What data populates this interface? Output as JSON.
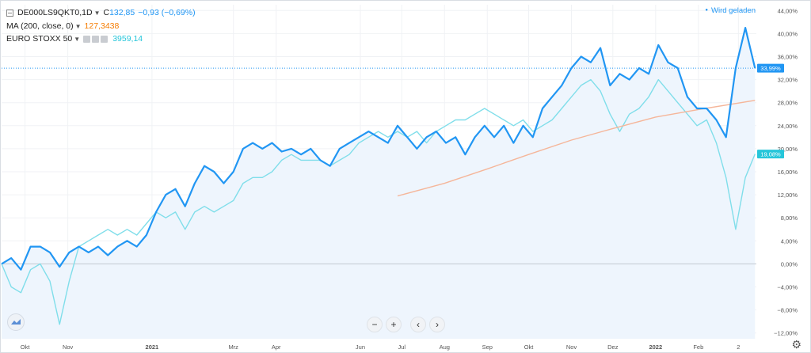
{
  "legend": {
    "symbol": "DE000LS9QKT0",
    "interval": "1D",
    "close_label": "C",
    "close_value": "132,85",
    "change": "−0,93 (−0,69%)",
    "ma_label": "MA (200, close, 0)",
    "ma_value": "127,3438",
    "compare_label": "EURO STOXX 50",
    "compare_value": "3959,14"
  },
  "status": "Wird geladen",
  "controls": {
    "zoom_out": "−",
    "zoom_in": "+",
    "scroll_left": "‹",
    "scroll_right": "›"
  },
  "colors": {
    "price": "#2196f3",
    "compare": "#80deea",
    "ma": "#f5b69a",
    "area": "#eef5fd",
    "price_badge": "#2196f3",
    "compare_badge": "#26c6da"
  },
  "chart_data": {
    "type": "line",
    "y_unit": "percent",
    "ylim": [
      -13,
      45
    ],
    "y_ticks": [
      "44,00%",
      "40,00%",
      "36,00%",
      "32,00%",
      "28,00%",
      "24,00%",
      "20,00%",
      "16,00%",
      "12,00%",
      "8,00%",
      "4,00%",
      "0,00%",
      "−4,00%",
      "−8,00%",
      "−12,00%"
    ],
    "y_tick_values": [
      44,
      40,
      36,
      32,
      28,
      24,
      20,
      16,
      12,
      8,
      4,
      0,
      -4,
      -8,
      -12
    ],
    "x_ticks": [
      "Okt",
      "Nov",
      "2021",
      "Mrz",
      "Apr",
      "Jun",
      "Jul",
      "Aug",
      "Sep",
      "Okt",
      "Nov",
      "Dez",
      "2022",
      "Feb",
      "2"
    ],
    "x_tick_dates": [
      "2020-10-01",
      "2020-11-01",
      "2021-01-01",
      "2021-03-01",
      "2021-04-01",
      "2021-06-01",
      "2021-07-01",
      "2021-08-01",
      "2021-09-01",
      "2021-10-01",
      "2021-11-01",
      "2021-12-01",
      "2022-01-01",
      "2022-02-01",
      "2022-03-02"
    ],
    "x_range": [
      "2020-09-14",
      "2022-03-15"
    ],
    "last_values": {
      "price": "33,99%",
      "compare": "19,08%"
    },
    "series": [
      {
        "name": "DE000LS9QKT0",
        "points": [
          [
            "2020-09-14",
            0
          ],
          [
            "2020-09-21",
            1
          ],
          [
            "2020-09-28",
            -1
          ],
          [
            "2020-10-05",
            3
          ],
          [
            "2020-10-12",
            3
          ],
          [
            "2020-10-19",
            2
          ],
          [
            "2020-10-26",
            -0.5
          ],
          [
            "2020-11-02",
            2
          ],
          [
            "2020-11-09",
            3
          ],
          [
            "2020-11-16",
            2
          ],
          [
            "2020-11-23",
            3
          ],
          [
            "2020-11-30",
            1.5
          ],
          [
            "2020-12-07",
            3
          ],
          [
            "2020-12-14",
            4
          ],
          [
            "2020-12-21",
            3
          ],
          [
            "2020-12-28",
            5
          ],
          [
            "2021-01-04",
            9
          ],
          [
            "2021-01-11",
            12
          ],
          [
            "2021-01-18",
            13
          ],
          [
            "2021-01-25",
            10
          ],
          [
            "2021-02-01",
            14
          ],
          [
            "2021-02-08",
            17
          ],
          [
            "2021-02-15",
            16
          ],
          [
            "2021-02-22",
            14
          ],
          [
            "2021-03-01",
            16
          ],
          [
            "2021-03-08",
            20
          ],
          [
            "2021-03-15",
            21
          ],
          [
            "2021-03-22",
            20
          ],
          [
            "2021-03-29",
            21
          ],
          [
            "2021-04-05",
            19.5
          ],
          [
            "2021-04-12",
            20
          ],
          [
            "2021-04-19",
            19
          ],
          [
            "2021-04-26",
            20
          ],
          [
            "2021-05-03",
            18
          ],
          [
            "2021-05-10",
            17
          ],
          [
            "2021-05-17",
            20
          ],
          [
            "2021-05-24",
            21
          ],
          [
            "2021-05-31",
            22
          ],
          [
            "2021-06-07",
            23
          ],
          [
            "2021-06-14",
            22
          ],
          [
            "2021-06-21",
            21
          ],
          [
            "2021-06-28",
            24
          ],
          [
            "2021-07-05",
            22
          ],
          [
            "2021-07-12",
            20
          ],
          [
            "2021-07-19",
            22
          ],
          [
            "2021-07-26",
            23
          ],
          [
            "2021-08-02",
            21
          ],
          [
            "2021-08-09",
            22
          ],
          [
            "2021-08-16",
            19
          ],
          [
            "2021-08-23",
            22
          ],
          [
            "2021-08-30",
            24
          ],
          [
            "2021-09-06",
            22
          ],
          [
            "2021-09-13",
            24
          ],
          [
            "2021-09-20",
            21
          ],
          [
            "2021-09-27",
            24
          ],
          [
            "2021-10-04",
            22
          ],
          [
            "2021-10-11",
            27
          ],
          [
            "2021-10-18",
            29
          ],
          [
            "2021-10-25",
            31
          ],
          [
            "2021-11-01",
            34
          ],
          [
            "2021-11-08",
            36
          ],
          [
            "2021-11-15",
            35
          ],
          [
            "2021-11-22",
            37.5
          ],
          [
            "2021-11-29",
            31
          ],
          [
            "2021-12-06",
            33
          ],
          [
            "2021-12-13",
            32
          ],
          [
            "2021-12-20",
            34
          ],
          [
            "2021-12-27",
            33
          ],
          [
            "2022-01-03",
            38
          ],
          [
            "2022-01-10",
            35
          ],
          [
            "2022-01-17",
            34
          ],
          [
            "2022-01-24",
            29
          ],
          [
            "2022-01-31",
            27
          ],
          [
            "2022-02-07",
            27
          ],
          [
            "2022-02-14",
            25
          ],
          [
            "2022-02-21",
            22
          ],
          [
            "2022-02-28",
            34
          ],
          [
            "2022-03-07",
            41
          ],
          [
            "2022-03-14",
            33.99
          ]
        ]
      },
      {
        "name": "EURO STOXX 50",
        "points": [
          [
            "2020-09-14",
            0
          ],
          [
            "2020-09-21",
            -4
          ],
          [
            "2020-09-28",
            -5
          ],
          [
            "2020-10-05",
            -1
          ],
          [
            "2020-10-12",
            0
          ],
          [
            "2020-10-19",
            -3
          ],
          [
            "2020-10-26",
            -10.5
          ],
          [
            "2020-11-02",
            -3
          ],
          [
            "2020-11-09",
            3
          ],
          [
            "2020-11-16",
            4
          ],
          [
            "2020-11-23",
            5
          ],
          [
            "2020-11-30",
            6
          ],
          [
            "2020-12-07",
            5
          ],
          [
            "2020-12-14",
            6
          ],
          [
            "2020-12-21",
            5
          ],
          [
            "2020-12-28",
            7
          ],
          [
            "2021-01-04",
            9
          ],
          [
            "2021-01-11",
            8
          ],
          [
            "2021-01-18",
            9
          ],
          [
            "2021-01-25",
            6
          ],
          [
            "2021-02-01",
            9
          ],
          [
            "2021-02-08",
            10
          ],
          [
            "2021-02-15",
            9
          ],
          [
            "2021-02-22",
            10
          ],
          [
            "2021-03-01",
            11
          ],
          [
            "2021-03-08",
            14
          ],
          [
            "2021-03-15",
            15
          ],
          [
            "2021-03-22",
            15
          ],
          [
            "2021-03-29",
            16
          ],
          [
            "2021-04-05",
            18
          ],
          [
            "2021-04-12",
            19
          ],
          [
            "2021-04-19",
            18
          ],
          [
            "2021-04-26",
            18
          ],
          [
            "2021-05-03",
            18
          ],
          [
            "2021-05-10",
            17
          ],
          [
            "2021-05-17",
            18
          ],
          [
            "2021-05-24",
            19
          ],
          [
            "2021-05-31",
            21
          ],
          [
            "2021-06-07",
            22
          ],
          [
            "2021-06-14",
            23
          ],
          [
            "2021-06-21",
            22
          ],
          [
            "2021-06-28",
            23
          ],
          [
            "2021-07-05",
            22
          ],
          [
            "2021-07-12",
            23
          ],
          [
            "2021-07-19",
            21
          ],
          [
            "2021-07-26",
            23
          ],
          [
            "2021-08-02",
            24
          ],
          [
            "2021-08-09",
            25
          ],
          [
            "2021-08-16",
            25
          ],
          [
            "2021-08-23",
            26
          ],
          [
            "2021-08-30",
            27
          ],
          [
            "2021-09-06",
            26
          ],
          [
            "2021-09-13",
            25
          ],
          [
            "2021-09-20",
            24
          ],
          [
            "2021-09-27",
            25
          ],
          [
            "2021-10-04",
            23
          ],
          [
            "2021-10-11",
            24
          ],
          [
            "2021-10-18",
            25
          ],
          [
            "2021-10-25",
            27
          ],
          [
            "2021-11-01",
            29
          ],
          [
            "2021-11-08",
            31
          ],
          [
            "2021-11-15",
            32
          ],
          [
            "2021-11-22",
            30
          ],
          [
            "2021-11-29",
            26
          ],
          [
            "2021-12-06",
            23
          ],
          [
            "2021-12-13",
            26
          ],
          [
            "2021-12-20",
            27
          ],
          [
            "2021-12-27",
            29
          ],
          [
            "2022-01-03",
            32
          ],
          [
            "2022-01-10",
            30
          ],
          [
            "2022-01-17",
            28
          ],
          [
            "2022-01-24",
            26
          ],
          [
            "2022-01-31",
            24
          ],
          [
            "2022-02-07",
            25
          ],
          [
            "2022-02-14",
            21
          ],
          [
            "2022-02-21",
            15
          ],
          [
            "2022-02-28",
            6
          ],
          [
            "2022-03-07",
            15
          ],
          [
            "2022-03-14",
            19.08
          ]
        ]
      },
      {
        "name": "MA (200, close, 0)",
        "points": [
          [
            "2021-06-28",
            11.8
          ],
          [
            "2021-08-01",
            14
          ],
          [
            "2021-09-01",
            16.5
          ],
          [
            "2021-10-01",
            19
          ],
          [
            "2021-11-01",
            21.5
          ],
          [
            "2021-12-01",
            23.5
          ],
          [
            "2022-01-01",
            25.5
          ],
          [
            "2022-02-01",
            26.8
          ],
          [
            "2022-03-14",
            28.4
          ]
        ]
      }
    ]
  }
}
